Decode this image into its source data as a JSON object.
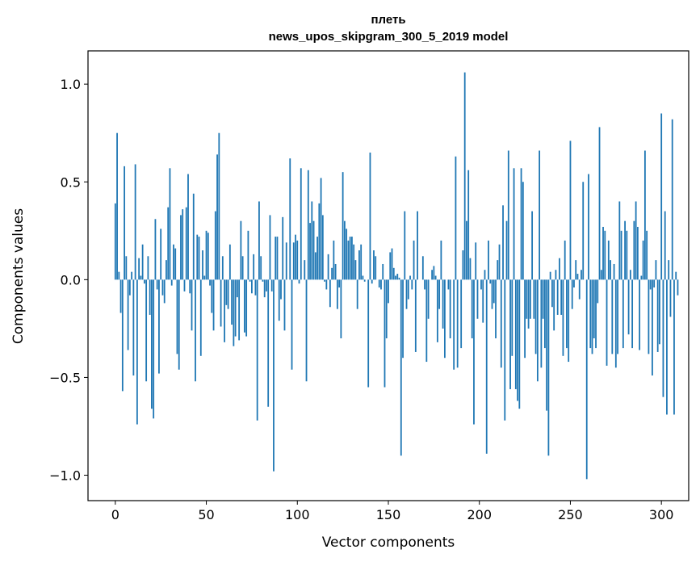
{
  "chart_data": {
    "type": "bar",
    "title_line1": "плеть",
    "title_line2": "news_upos_skipgram_300_5_2019 model",
    "xlabel": "Vector components",
    "ylabel": "Components values",
    "xlim": [
      -15,
      315
    ],
    "ylim": [
      -1.13,
      1.17
    ],
    "xticks": [
      0,
      50,
      100,
      150,
      200,
      250,
      300
    ],
    "xtick_labels": [
      "0",
      "50",
      "100",
      "150",
      "200",
      "250",
      "300"
    ],
    "yticks": [
      -1.0,
      -0.5,
      0.0,
      0.5,
      1.0
    ],
    "ytick_labels": [
      "−1.0",
      "−0.5",
      "0.0",
      "0.5",
      "1.0"
    ],
    "bar_color": "#1f77b4",
    "values": [
      0.39,
      0.75,
      0.04,
      -0.17,
      -0.57,
      0.58,
      0.12,
      -0.36,
      -0.08,
      0.04,
      -0.49,
      0.59,
      -0.74,
      0.11,
      0.02,
      0.18,
      -0.02,
      -0.52,
      0.12,
      -0.18,
      -0.66,
      -0.71,
      0.31,
      -0.05,
      -0.48,
      0.26,
      -0.08,
      -0.12,
      0.1,
      0.37,
      0.57,
      -0.03,
      0.18,
      0.16,
      -0.38,
      -0.46,
      0.33,
      0.36,
      -0.06,
      0.37,
      0.54,
      -0.07,
      -0.26,
      0.44,
      -0.52,
      0.23,
      0.22,
      -0.39,
      0.15,
      0.02,
      0.25,
      0.24,
      -0.03,
      -0.17,
      -0.26,
      0.35,
      0.64,
      0.75,
      -0.24,
      0.12,
      -0.32,
      -0.13,
      -0.15,
      0.18,
      -0.23,
      -0.34,
      -0.29,
      -0.09,
      -0.31,
      0.3,
      0.12,
      -0.27,
      -0.29,
      0.25,
      -0.01,
      -0.07,
      0.13,
      -0.08,
      -0.72,
      0.4,
      0.12,
      -0.01,
      -0.09,
      -0.06,
      -0.65,
      0.33,
      -0.06,
      -0.98,
      0.22,
      0.22,
      -0.21,
      -0.1,
      0.32,
      -0.26,
      0.19,
      0.0,
      0.62,
      -0.46,
      0.19,
      0.23,
      0.2,
      -0.02,
      0.57,
      0.0,
      0.1,
      -0.52,
      0.56,
      0.29,
      0.4,
      0.3,
      0.14,
      0.22,
      0.39,
      0.52,
      0.33,
      -0.01,
      -0.05,
      0.13,
      -0.14,
      0.06,
      0.2,
      0.08,
      -0.15,
      -0.04,
      -0.3,
      0.55,
      0.3,
      0.26,
      0.2,
      0.22,
      0.22,
      0.18,
      0.1,
      -0.15,
      0.15,
      0.18,
      0.02,
      -0.01,
      0.0,
      -0.55,
      0.65,
      -0.02,
      0.15,
      0.12,
      0.0,
      -0.04,
      -0.05,
      0.08,
      -0.55,
      -0.3,
      -0.12,
      0.14,
      0.16,
      0.06,
      0.02,
      0.03,
      0.01,
      -0.9,
      -0.4,
      0.35,
      -0.15,
      -0.1,
      0.02,
      -0.05,
      0.2,
      -0.37,
      0.35,
      0.0,
      0.0,
      0.12,
      -0.05,
      -0.42,
      -0.2,
      0.0,
      0.05,
      0.07,
      0.02,
      -0.32,
      -0.15,
      0.2,
      -0.25,
      -0.4,
      0.0,
      -0.05,
      -0.3,
      0.0,
      -0.46,
      0.63,
      -0.45,
      0.0,
      -0.35,
      0.15,
      1.06,
      0.3,
      0.56,
      0.11,
      -0.3,
      -0.74,
      0.19,
      -0.2,
      0.0,
      -0.05,
      -0.22,
      0.05,
      -0.89,
      0.2,
      -0.02,
      -0.15,
      -0.12,
      -0.3,
      0.1,
      0.18,
      -0.45,
      0.38,
      -0.72,
      0.3,
      0.66,
      -0.56,
      -0.39,
      0.57,
      -0.56,
      -0.62,
      -0.66,
      0.57,
      0.5,
      -0.4,
      -0.2,
      -0.25,
      -0.2,
      0.35,
      -0.2,
      -0.38,
      -0.52,
      0.66,
      -0.45,
      -0.2,
      -0.35,
      -0.67,
      -0.9,
      0.04,
      -0.14,
      -0.26,
      0.05,
      -0.18,
      0.11,
      -0.18,
      -0.39,
      0.2,
      -0.35,
      -0.42,
      0.71,
      -0.15,
      -0.04,
      0.1,
      0.03,
      -0.1,
      0.05,
      0.5,
      0.0,
      -1.02,
      0.54,
      -0.35,
      -0.38,
      -0.3,
      -0.35,
      -0.12,
      0.78,
      0.05,
      0.27,
      0.25,
      -0.44,
      0.2,
      0.1,
      -0.38,
      0.08,
      -0.45,
      -0.38,
      0.4,
      0.25,
      -0.35,
      0.3,
      0.25,
      -0.28,
      0.05,
      -0.35,
      0.3,
      0.4,
      0.27,
      -0.36,
      0.02,
      0.2,
      0.66,
      0.25,
      -0.38,
      -0.05,
      -0.49,
      -0.04,
      0.1,
      -0.37,
      -0.33,
      0.85,
      -0.6,
      0.35,
      -0.69,
      0.1,
      -0.19,
      0.82,
      -0.69,
      0.04,
      -0.08
    ]
  }
}
